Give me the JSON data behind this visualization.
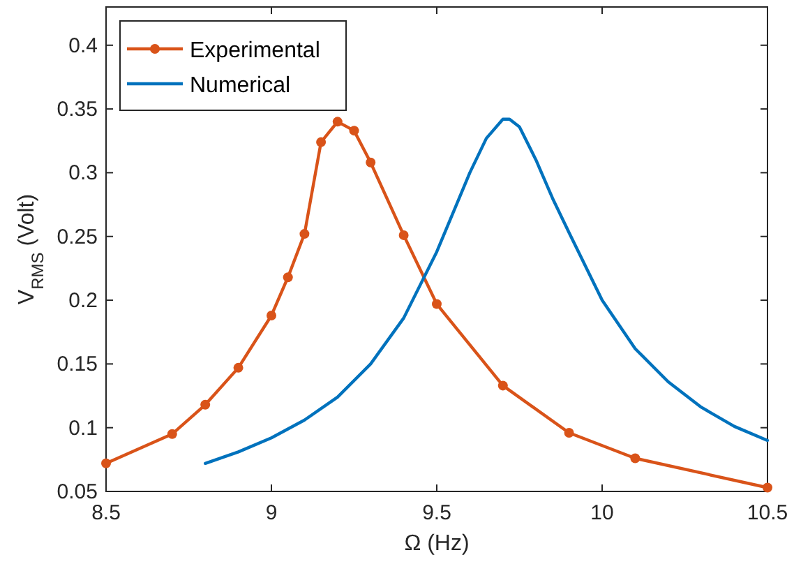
{
  "chart_data": {
    "type": "line",
    "xlabel": "Ω (Hz)",
    "ylabel": "V$_{RMS}$ (Volt)",
    "xlim": [
      8.5,
      10.5
    ],
    "xticks": [
      8.5,
      9,
      9.5,
      10,
      10.5
    ],
    "ylim": [
      0.05,
      0.43
    ],
    "yticks": [
      0.05,
      0.1,
      0.15,
      0.2,
      0.25,
      0.3,
      0.35,
      0.4
    ],
    "grid": false,
    "legend": "top left",
    "line_style": "solid",
    "series": [
      {
        "name": "Experimental",
        "color": "#d95319",
        "marker": "circle",
        "x": [
          8.5,
          8.7,
          8.8,
          8.9,
          9.0,
          9.05,
          9.1,
          9.15,
          9.2,
          9.25,
          9.3,
          9.4,
          9.5,
          9.7,
          9.9,
          10.1,
          10.5
        ],
        "values": [
          0.072,
          0.095,
          0.118,
          0.147,
          0.188,
          0.218,
          0.252,
          0.324,
          0.34,
          0.333,
          0.308,
          0.251,
          0.197,
          0.133,
          0.096,
          0.076,
          0.053
        ]
      },
      {
        "name": "Numerical",
        "color": "#0072bd",
        "marker": "none",
        "x": [
          8.8,
          8.9,
          9.0,
          9.1,
          9.2,
          9.3,
          9.4,
          9.5,
          9.6,
          9.65,
          9.7,
          9.72,
          9.75,
          9.8,
          9.85,
          9.9,
          10.0,
          10.1,
          10.2,
          10.3,
          10.4,
          10.5
        ],
        "values": [
          0.072,
          0.081,
          0.092,
          0.106,
          0.124,
          0.15,
          0.186,
          0.238,
          0.3,
          0.327,
          0.342,
          0.342,
          0.336,
          0.31,
          0.28,
          0.253,
          0.2,
          0.162,
          0.136,
          0.116,
          0.101,
          0.09
        ]
      }
    ]
  }
}
